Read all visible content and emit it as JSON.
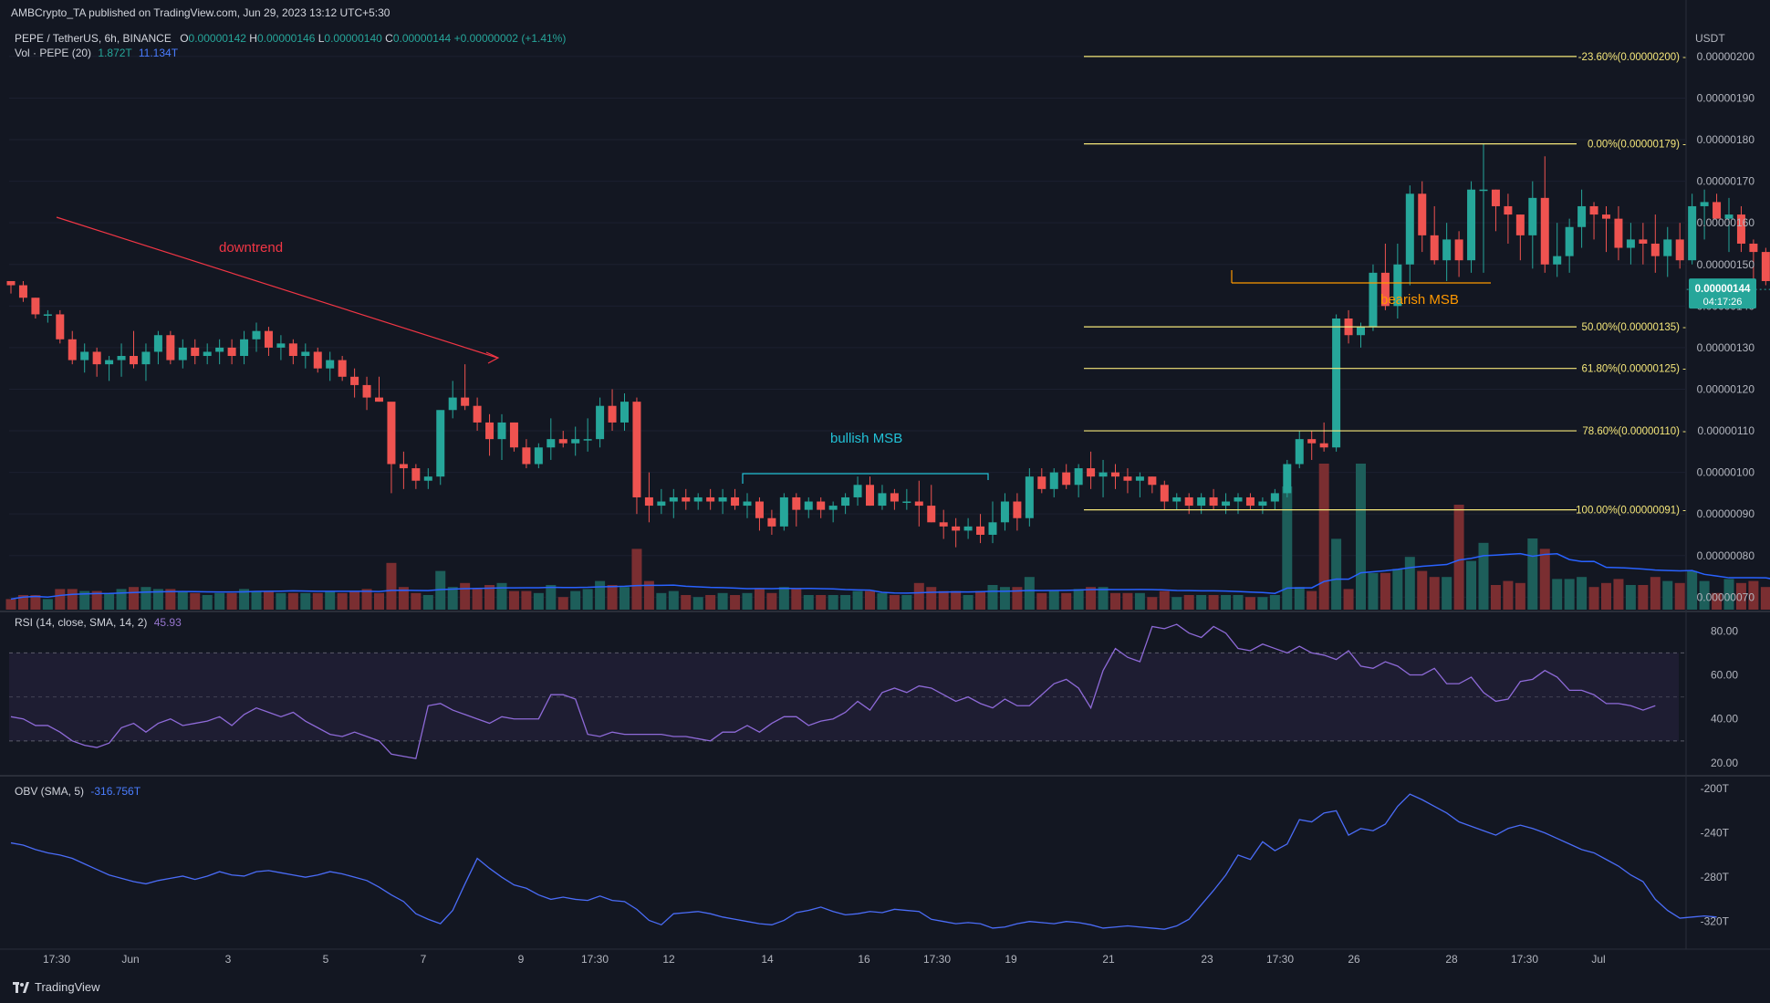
{
  "header": {
    "published": "AMBCrypto_TA published on TradingView.com, Jun 29, 2023 13:12 UTC+5:30",
    "symbol": "PEPE / TetherUS, 6h, BINANCE",
    "o_label": "O",
    "o": "0.00000142",
    "h_label": "H",
    "h": "0.00000146",
    "l_label": "L",
    "l": "0.00000140",
    "c_label": "C",
    "c": "0.00000144",
    "change": "+0.00000002 (+1.41%)",
    "vol_label": "Vol · PEPE (20)",
    "vol_val1": "1.872T",
    "vol_val2": "11.134T"
  },
  "footer": {
    "brand": "TradingView"
  },
  "colors": {
    "bg": "#131722",
    "up": "#26a69a",
    "down": "#ef5350",
    "fib": "#f5e77a",
    "rsi": "#7e57c2",
    "obv": "#2962ff",
    "vol_ma": "#2962ff",
    "annot_red": "#f23645",
    "annot_cyan": "#22c1d6",
    "annot_orange": "#ff9800"
  },
  "chart_data": [
    {
      "type": "candlestick",
      "title": "PEPE / TetherUS, 6h, BINANCE",
      "y_unit": "USDT",
      "ylim": [
        6.7e-07,
        2.07e-06
      ],
      "y_ticks": [
        "0.00000070",
        "0.00000080",
        "0.00000090",
        "0.00000100",
        "0.00000110",
        "0.00000120",
        "0.00000130",
        "0.00000140",
        "0.00000150",
        "0.00000160",
        "0.00000170",
        "0.00000180",
        "0.00000190",
        "0.00000200"
      ],
      "x_ticks": [
        "17:30",
        "Jun",
        "3",
        "5",
        "7",
        "9",
        "17:30",
        "12",
        "14",
        "16",
        "17:30",
        "19",
        "21",
        "23",
        "17:30",
        "26",
        "28",
        "17:30",
        "Jul"
      ],
      "last_price": "0.00000144",
      "countdown": "04:17:26",
      "candles_ohlc_e8": [
        [
          146,
          146,
          143,
          145
        ],
        [
          145,
          146,
          141,
          142
        ],
        [
          142,
          142,
          137,
          138
        ],
        [
          138,
          139,
          136,
          138
        ],
        [
          138,
          139,
          131,
          132
        ],
        [
          132,
          134,
          126,
          127
        ],
        [
          127,
          131,
          124,
          129
        ],
        [
          129,
          130,
          123,
          126
        ],
        [
          126,
          128,
          122,
          127
        ],
        [
          127,
          131,
          123,
          128
        ],
        [
          128,
          134,
          125,
          126
        ],
        [
          126,
          131,
          122,
          129
        ],
        [
          129,
          134,
          126,
          133
        ],
        [
          133,
          134,
          126,
          127
        ],
        [
          127,
          132,
          125,
          130
        ],
        [
          130,
          132,
          126,
          128
        ],
        [
          128,
          131,
          126,
          129
        ],
        [
          129,
          132,
          126,
          130
        ],
        [
          130,
          132,
          126,
          128
        ],
        [
          128,
          134,
          126,
          132
        ],
        [
          132,
          136,
          129,
          134
        ],
        [
          134,
          135,
          128,
          130
        ],
        [
          130,
          133,
          127,
          131
        ],
        [
          131,
          132,
          126,
          128
        ],
        [
          128,
          131,
          125,
          129
        ],
        [
          129,
          130,
          124,
          125
        ],
        [
          125,
          129,
          122,
          127
        ],
        [
          127,
          128,
          122,
          123
        ],
        [
          123,
          125,
          118,
          121
        ],
        [
          121,
          123,
          115,
          118
        ],
        [
          118,
          123,
          117,
          117
        ],
        [
          117,
          116,
          95,
          102
        ],
        [
          102,
          105,
          96,
          101
        ],
        [
          101,
          102,
          96,
          98
        ],
        [
          98,
          101,
          96,
          99
        ],
        [
          99,
          114,
          97,
          115
        ],
        [
          115,
          122,
          113,
          118
        ],
        [
          118,
          126,
          115,
          116
        ],
        [
          116,
          118,
          110,
          112
        ],
        [
          112,
          114,
          104,
          108
        ],
        [
          108,
          114,
          103,
          112
        ],
        [
          112,
          112,
          105,
          106
        ],
        [
          106,
          108,
          101,
          102
        ],
        [
          102,
          107,
          101,
          106
        ],
        [
          106,
          113,
          103,
          108
        ],
        [
          108,
          110,
          106,
          107
        ],
        [
          107,
          111,
          104,
          108
        ],
        [
          108,
          113,
          105,
          108
        ],
        [
          108,
          118,
          106,
          116
        ],
        [
          116,
          120,
          110,
          112
        ],
        [
          112,
          119,
          110,
          117
        ],
        [
          117,
          118,
          90,
          94
        ],
        [
          94,
          100,
          88,
          92
        ],
        [
          92,
          96,
          90,
          93
        ],
        [
          93,
          96,
          89,
          94
        ],
        [
          94,
          96,
          91,
          93
        ],
        [
          93,
          95,
          91,
          94
        ],
        [
          94,
          96,
          91,
          93
        ],
        [
          93,
          96,
          90,
          94
        ],
        [
          94,
          96,
          91,
          92
        ],
        [
          92,
          95,
          89,
          93
        ],
        [
          93,
          94,
          86,
          89
        ],
        [
          89,
          91,
          85,
          87
        ],
        [
          87,
          95,
          86,
          94
        ],
        [
          94,
          95,
          87,
          91
        ],
        [
          91,
          94,
          89,
          93
        ],
        [
          93,
          94,
          89,
          91
        ],
        [
          91,
          93,
          88,
          92
        ],
        [
          92,
          95,
          90,
          94
        ],
        [
          94,
          99,
          92,
          97
        ],
        [
          97,
          99,
          92,
          92
        ],
        [
          92,
          97,
          91,
          95
        ],
        [
          95,
          96,
          91,
          93
        ],
        [
          93,
          96,
          91,
          93
        ],
        [
          93,
          98,
          87,
          92
        ],
        [
          92,
          97,
          88,
          88
        ],
        [
          88,
          91,
          84,
          87
        ],
        [
          87,
          89,
          82,
          86
        ],
        [
          86,
          89,
          84,
          87
        ],
        [
          87,
          90,
          83,
          85
        ],
        [
          85,
          93,
          83,
          88
        ],
        [
          88,
          95,
          86,
          93
        ],
        [
          93,
          95,
          86,
          89
        ],
        [
          89,
          101,
          87,
          99
        ],
        [
          99,
          101,
          95,
          96
        ],
        [
          96,
          101,
          94,
          100
        ],
        [
          100,
          102,
          96,
          97
        ],
        [
          97,
          102,
          94,
          101
        ],
        [
          101,
          105,
          96,
          99
        ],
        [
          99,
          103,
          94,
          100
        ],
        [
          100,
          102,
          96,
          99
        ],
        [
          99,
          101,
          95,
          98
        ],
        [
          98,
          100,
          94,
          99
        ],
        [
          99,
          99,
          95,
          97
        ],
        [
          97,
          98,
          91,
          93
        ],
        [
          93,
          95,
          91,
          94
        ],
        [
          94,
          95,
          90,
          92
        ],
        [
          92,
          95,
          90,
          94
        ],
        [
          94,
          96,
          91,
          92
        ],
        [
          92,
          95,
          90,
          93
        ],
        [
          93,
          95,
          90,
          94
        ],
        [
          94,
          95,
          91,
          92
        ],
        [
          92,
          94,
          90,
          93
        ],
        [
          93,
          96,
          91,
          95
        ],
        [
          95,
          103,
          94,
          102
        ],
        [
          102,
          110,
          101,
          108
        ],
        [
          108,
          110,
          103,
          107
        ],
        [
          107,
          112,
          105,
          106
        ],
        [
          106,
          138,
          105,
          137
        ],
        [
          137,
          139,
          131,
          133
        ],
        [
          133,
          136,
          130,
          135
        ],
        [
          135,
          150,
          134,
          148
        ],
        [
          148,
          155,
          139,
          140
        ],
        [
          140,
          155,
          137,
          150
        ],
        [
          150,
          169,
          145,
          167
        ],
        [
          167,
          170,
          153,
          157
        ],
        [
          157,
          164,
          150,
          151
        ],
        [
          151,
          160,
          146,
          156
        ],
        [
          156,
          158,
          147,
          151
        ],
        [
          151,
          170,
          148,
          168
        ],
        [
          168,
          179,
          148,
          168
        ],
        [
          168,
          168,
          158,
          164
        ],
        [
          164,
          167,
          155,
          162
        ],
        [
          162,
          162,
          151,
          157
        ],
        [
          157,
          170,
          149,
          166
        ],
        [
          166,
          176,
          148,
          150
        ],
        [
          150,
          160,
          147,
          152
        ],
        [
          152,
          161,
          148,
          159
        ],
        [
          159,
          168,
          154,
          164
        ],
        [
          164,
          165,
          156,
          162
        ],
        [
          162,
          164,
          153,
          161
        ],
        [
          161,
          164,
          151,
          154
        ],
        [
          154,
          160,
          150,
          156
        ],
        [
          156,
          160,
          150,
          155
        ],
        [
          155,
          162,
          148,
          152
        ],
        [
          152,
          159,
          147,
          156
        ],
        [
          156,
          160,
          149,
          151
        ],
        [
          151,
          167,
          150,
          164
        ],
        [
          164,
          168,
          156,
          165
        ],
        [
          165,
          167,
          161,
          161
        ],
        [
          161,
          166,
          153,
          162
        ],
        [
          162,
          164,
          153,
          155
        ],
        [
          155,
          156,
          144,
          153
        ],
        [
          153,
          154,
          145,
          146
        ],
        [
          146,
          149,
          136,
          141
        ],
        [
          141,
          146,
          140,
          142
        ],
        [
          142,
          146,
          140,
          144
        ]
      ],
      "annotations": [
        {
          "text": "downtrend"
        },
        {
          "text": "bullish MSB"
        },
        {
          "text": "bearish MSB"
        }
      ],
      "fib_levels": [
        {
          "label": "-23.60%(0.00000200)",
          "value": 2e-06
        },
        {
          "label": "0.00%(0.00000179)",
          "value": 1.79e-06
        },
        {
          "label": "50.00%(0.00000135)",
          "value": 1.35e-06
        },
        {
          "label": "61.80%(0.00000125)",
          "value": 1.25e-06
        },
        {
          "label": "78.60%(0.00000110)",
          "value": 1.1e-06
        },
        {
          "label": "100.00%(0.00000091)",
          "value": 9.1e-07
        }
      ]
    },
    {
      "type": "line",
      "title": "RSI (14, close, SMA, 14, 2)",
      "last_value": "45.93",
      "ylim": [
        15,
        88
      ],
      "y_ticks": [
        "80.00",
        "60.00",
        "40.00",
        "20.00"
      ],
      "bands": [
        30,
        50,
        70
      ],
      "values": [
        41,
        40,
        37,
        37,
        34,
        30,
        28,
        27,
        29,
        36,
        38,
        34,
        38,
        40,
        37,
        38,
        39,
        41,
        37,
        42,
        45,
        43,
        41,
        43,
        39,
        36,
        33,
        32,
        34,
        32,
        30,
        24,
        23,
        22,
        46,
        47,
        44,
        42,
        40,
        38,
        41,
        40,
        40,
        40,
        51,
        51,
        49,
        33,
        32,
        34,
        33,
        33,
        33,
        33,
        32,
        32,
        31,
        30,
        34,
        34,
        37,
        34,
        38,
        41,
        41,
        37,
        39,
        40,
        43,
        48,
        44,
        52,
        54,
        52,
        55,
        54,
        51,
        48,
        50,
        47,
        45,
        49,
        46,
        46,
        51,
        56,
        58,
        54,
        45,
        62,
        72,
        68,
        66,
        82,
        81,
        83,
        79,
        77,
        82,
        79,
        72,
        71,
        74,
        72,
        70,
        73,
        70,
        69,
        67,
        71,
        64,
        63,
        66,
        64,
        60,
        60,
        63,
        56,
        56,
        59,
        52,
        48,
        49,
        57,
        58,
        62,
        59,
        53,
        53,
        51,
        47,
        47,
        46,
        44,
        46
      ]
    },
    {
      "type": "line",
      "title": "OBV (SMA, 5)",
      "last_value": "-316.756T",
      "ylim": [
        -345,
        -190
      ],
      "y_ticks": [
        "-200T",
        "-240T",
        "-280T",
        "-320T"
      ],
      "values": [
        -249,
        -251,
        -255,
        -258,
        -260,
        -263,
        -268,
        -273,
        -278,
        -281,
        -284,
        -286,
        -283,
        -281,
        -279,
        -282,
        -279,
        -275,
        -278,
        -279,
        -275,
        -274,
        -276,
        -278,
        -280,
        -278,
        -275,
        -277,
        -280,
        -283,
        -289,
        -296,
        -302,
        -313,
        -318,
        -322,
        -310,
        -286,
        -263,
        -272,
        -280,
        -287,
        -290,
        -296,
        -300,
        -298,
        -300,
        -301,
        -297,
        -301,
        -302,
        -309,
        -319,
        -323,
        -313,
        -312,
        -311,
        -313,
        -316,
        -318,
        -320,
        -322,
        -323,
        -319,
        -312,
        -310,
        -307,
        -311,
        -314,
        -313,
        -311,
        -312,
        -309,
        -310,
        -311,
        -318,
        -320,
        -322,
        -321,
        -322,
        -326,
        -325,
        -322,
        -320,
        -321,
        -322,
        -320,
        -321,
        -323,
        -326,
        -325,
        -324,
        -325,
        -326,
        -327,
        -324,
        -318,
        -305,
        -292,
        -278,
        -260,
        -264,
        -248,
        -256,
        -250,
        -228,
        -230,
        -222,
        -220,
        -242,
        -236,
        -238,
        -232,
        -216,
        -205,
        -210,
        -216,
        -222,
        -230,
        -234,
        -238,
        -242,
        -236,
        -233,
        -236,
        -240,
        -245,
        -250,
        -255,
        -258,
        -264,
        -270,
        -278,
        -284,
        -300,
        -310,
        -317,
        -316,
        -315,
        -316
      ]
    }
  ]
}
